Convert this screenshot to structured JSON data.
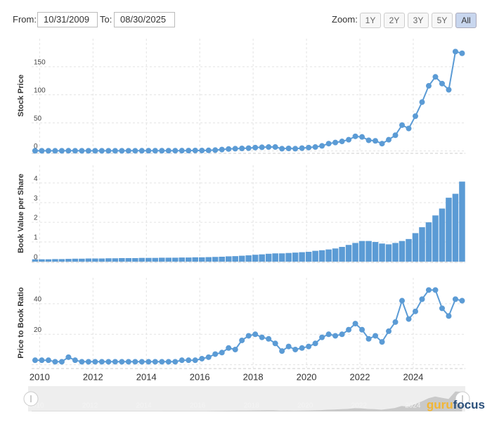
{
  "controls": {
    "from_label": "From:",
    "from": "10/31/2009",
    "to_label": "To:",
    "to": "08/30/2025",
    "zoom_label": "Zoom:",
    "zoom": [
      "1Y",
      "2Y",
      "3Y",
      "5Y",
      "All"
    ]
  },
  "logo": [
    "guru",
    "focus"
  ],
  "chart_data": [
    {
      "type": "line",
      "y_label": "Stock Price",
      "color": "#5b9bd5",
      "grid": true,
      "x": [
        2009.83,
        2010.08,
        2010.33,
        2010.58,
        2010.83,
        2011.08,
        2011.33,
        2011.58,
        2011.83,
        2012.08,
        2012.33,
        2012.58,
        2012.83,
        2013.08,
        2013.33,
        2013.58,
        2013.83,
        2014.08,
        2014.33,
        2014.58,
        2014.83,
        2015.08,
        2015.33,
        2015.58,
        2015.83,
        2016.08,
        2016.33,
        2016.58,
        2016.83,
        2017.08,
        2017.33,
        2017.58,
        2017.83,
        2018.08,
        2018.33,
        2018.58,
        2018.83,
        2019.08,
        2019.33,
        2019.58,
        2019.83,
        2020.08,
        2020.33,
        2020.58,
        2020.83,
        2021.08,
        2021.33,
        2021.58,
        2021.83,
        2022.08,
        2022.33,
        2022.58,
        2022.83,
        2023.08,
        2023.33,
        2023.58,
        2023.83,
        2024.08,
        2024.33,
        2024.58,
        2024.83,
        2025.08,
        2025.33,
        2025.58,
        2025.83
      ],
      "values": [
        0.3,
        0.3,
        0.3,
        0.25,
        0.3,
        0.4,
        0.35,
        0.3,
        0.3,
        0.3,
        0.3,
        0.3,
        0.3,
        0.3,
        0.35,
        0.35,
        0.4,
        0.45,
        0.45,
        0.45,
        0.5,
        0.5,
        0.55,
        0.6,
        0.8,
        0.8,
        1,
        1.5,
        2.5,
        3.5,
        4,
        4.5,
        5,
        6,
        6.5,
        7,
        7,
        4,
        4.5,
        4,
        5,
        6,
        7,
        9,
        13,
        15,
        17,
        20,
        26,
        25,
        19,
        18,
        13,
        20,
        28,
        46,
        40,
        62,
        87,
        116,
        132,
        120,
        109,
        177,
        174
      ],
      "xlim": [
        2009.7,
        2025.95
      ],
      "xticks": [
        2010,
        2012,
        2014,
        2016,
        2018,
        2020,
        2022,
        2024
      ],
      "ylim": [
        -3,
        200
      ],
      "yticks": [
        0,
        50,
        100,
        150
      ]
    },
    {
      "type": "bar",
      "y_label": "Book Value per Share",
      "color": "#5b9bd5",
      "grid": true,
      "x": [
        2009.83,
        2010.08,
        2010.33,
        2010.58,
        2010.83,
        2011.08,
        2011.33,
        2011.58,
        2011.83,
        2012.08,
        2012.33,
        2012.58,
        2012.83,
        2013.08,
        2013.33,
        2013.58,
        2013.83,
        2014.08,
        2014.33,
        2014.58,
        2014.83,
        2015.08,
        2015.33,
        2015.58,
        2015.83,
        2016.08,
        2016.33,
        2016.58,
        2016.83,
        2017.08,
        2017.33,
        2017.58,
        2017.83,
        2018.08,
        2018.33,
        2018.58,
        2018.83,
        2019.08,
        2019.33,
        2019.58,
        2019.83,
        2020.08,
        2020.33,
        2020.58,
        2020.83,
        2021.08,
        2021.33,
        2021.58,
        2021.83,
        2022.08,
        2022.33,
        2022.58,
        2022.83,
        2023.08,
        2023.33,
        2023.58,
        2023.83,
        2024.08,
        2024.33,
        2024.58,
        2024.83,
        2025.08,
        2025.33,
        2025.58,
        2025.83
      ],
      "values": [
        0.12,
        0.12,
        0.12,
        0.13,
        0.13,
        0.14,
        0.15,
        0.15,
        0.16,
        0.16,
        0.16,
        0.17,
        0.17,
        0.18,
        0.18,
        0.18,
        0.19,
        0.19,
        0.19,
        0.2,
        0.2,
        0.2,
        0.21,
        0.21,
        0.22,
        0.22,
        0.23,
        0.24,
        0.25,
        0.27,
        0.28,
        0.3,
        0.32,
        0.35,
        0.37,
        0.4,
        0.42,
        0.42,
        0.44,
        0.46,
        0.48,
        0.5,
        0.55,
        0.58,
        0.62,
        0.67,
        0.75,
        0.85,
        0.95,
        1.05,
        1.05,
        1.0,
        0.92,
        0.88,
        0.95,
        1.05,
        1.15,
        1.45,
        1.75,
        2.0,
        2.35,
        2.7,
        3.25,
        3.45,
        4.07
      ],
      "xlim": [
        2009.7,
        2025.95
      ],
      "xticks": [
        2010,
        2012,
        2014,
        2016,
        2018,
        2020,
        2022,
        2024
      ],
      "ylim": [
        0,
        4.9
      ],
      "yticks": [
        0,
        1,
        2,
        3,
        4
      ]
    },
    {
      "type": "line",
      "y_label": "Price to Book Ratio",
      "color": "#5b9bd5",
      "grid": true,
      "x": [
        2009.83,
        2010.08,
        2010.33,
        2010.58,
        2010.83,
        2011.08,
        2011.33,
        2011.58,
        2011.83,
        2012.08,
        2012.33,
        2012.58,
        2012.83,
        2013.08,
        2013.33,
        2013.58,
        2013.83,
        2014.08,
        2014.33,
        2014.58,
        2014.83,
        2015.08,
        2015.33,
        2015.58,
        2015.83,
        2016.08,
        2016.33,
        2016.58,
        2016.83,
        2017.08,
        2017.33,
        2017.58,
        2017.83,
        2018.08,
        2018.33,
        2018.58,
        2018.83,
        2019.08,
        2019.33,
        2019.58,
        2019.83,
        2020.08,
        2020.33,
        2020.58,
        2020.83,
        2021.08,
        2021.33,
        2021.58,
        2021.83,
        2022.08,
        2022.33,
        2022.58,
        2022.83,
        2023.08,
        2023.33,
        2023.58,
        2023.83,
        2024.08,
        2024.33,
        2024.58,
        2024.83,
        2025.08,
        2025.33,
        2025.58,
        2025.83
      ],
      "values": [
        3,
        3,
        3,
        2,
        2,
        5,
        3,
        2,
        2,
        2,
        2,
        2,
        2,
        2,
        2,
        2,
        2,
        2,
        2,
        2,
        2,
        2,
        3,
        3,
        3,
        4,
        5,
        7,
        8,
        11,
        10,
        16,
        19,
        20,
        18,
        17,
        14,
        9,
        12,
        10,
        11,
        12,
        14,
        18,
        20,
        19,
        20,
        23,
        27,
        23,
        17,
        19,
        15,
        22,
        28,
        42,
        30,
        35,
        43,
        49,
        49,
        37,
        32,
        43,
        42
      ],
      "xlim": [
        2009.7,
        2025.95
      ],
      "xticks": [
        2010,
        2012,
        2014,
        2016,
        2018,
        2020,
        2022,
        2024
      ],
      "ylim": [
        -2,
        57
      ],
      "yticks": [
        0,
        20,
        40
      ]
    }
  ]
}
